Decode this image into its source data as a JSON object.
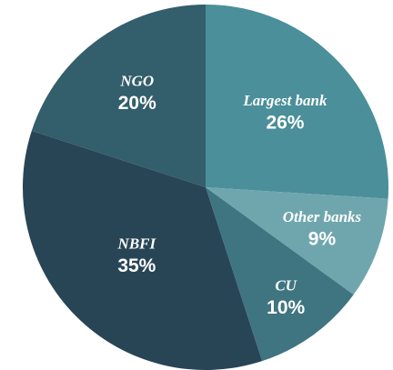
{
  "chart_data": {
    "type": "pie",
    "categories": [
      "Largest bank",
      "Other banks",
      "CU",
      "NBFI",
      "NGO"
    ],
    "values": [
      26,
      9,
      10,
      35,
      20
    ],
    "value_labels": [
      "26%",
      "9%",
      "10%",
      "35%",
      "20%"
    ],
    "colors": [
      "#4a8f99",
      "#6fa6ae",
      "#3f7580",
      "#284555",
      "#335e6b"
    ]
  }
}
